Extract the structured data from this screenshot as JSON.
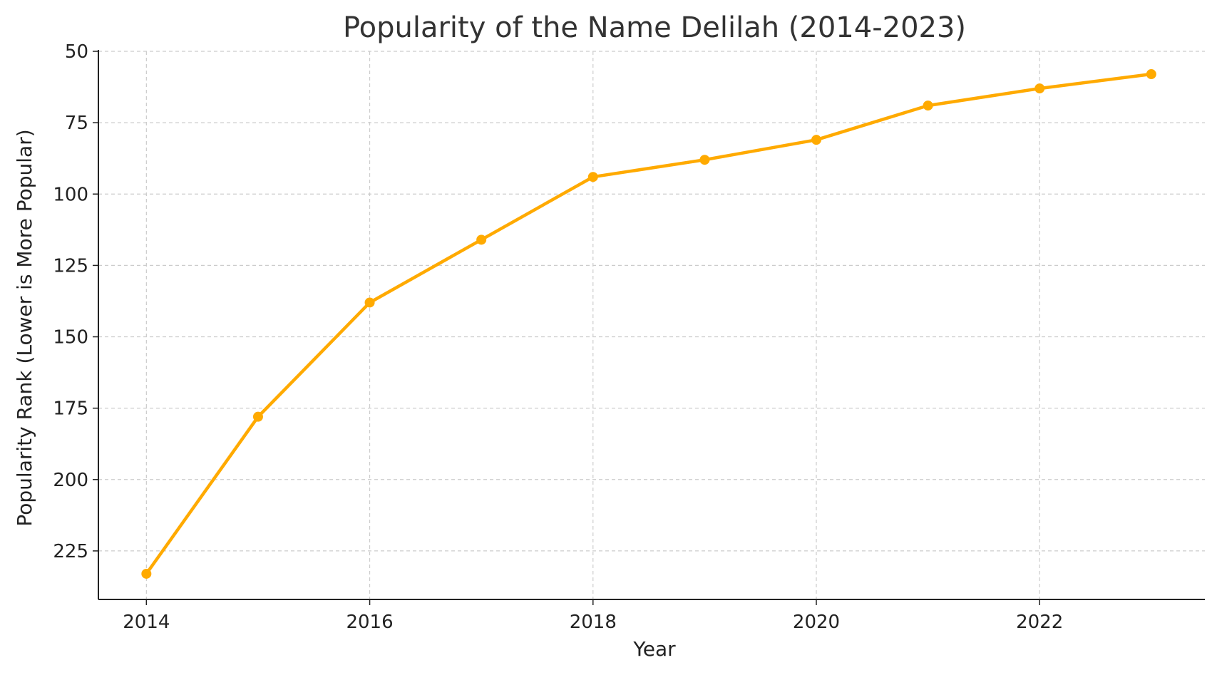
{
  "chart_data": {
    "type": "line",
    "title": "Popularity of the Name Delilah (2014-2023)",
    "xlabel": "Year",
    "ylabel": "Popularity Rank (Lower is More Popular)",
    "x": [
      2014,
      2015,
      2016,
      2017,
      2018,
      2019,
      2020,
      2021,
      2022,
      2023
    ],
    "series": [
      {
        "values": [
          233,
          178,
          138,
          116,
          94,
          88,
          81,
          69,
          63,
          58
        ],
        "color": "#FFAA00"
      }
    ],
    "xlim": [
      2013.57,
      2023.48
    ],
    "ylim": [
      242,
      50
    ],
    "y_inverted": true,
    "x_ticks": [
      2014,
      2016,
      2018,
      2020,
      2022
    ],
    "y_ticks": [
      50,
      75,
      100,
      125,
      150,
      175,
      200,
      225
    ],
    "grid": true,
    "legend": "none"
  }
}
